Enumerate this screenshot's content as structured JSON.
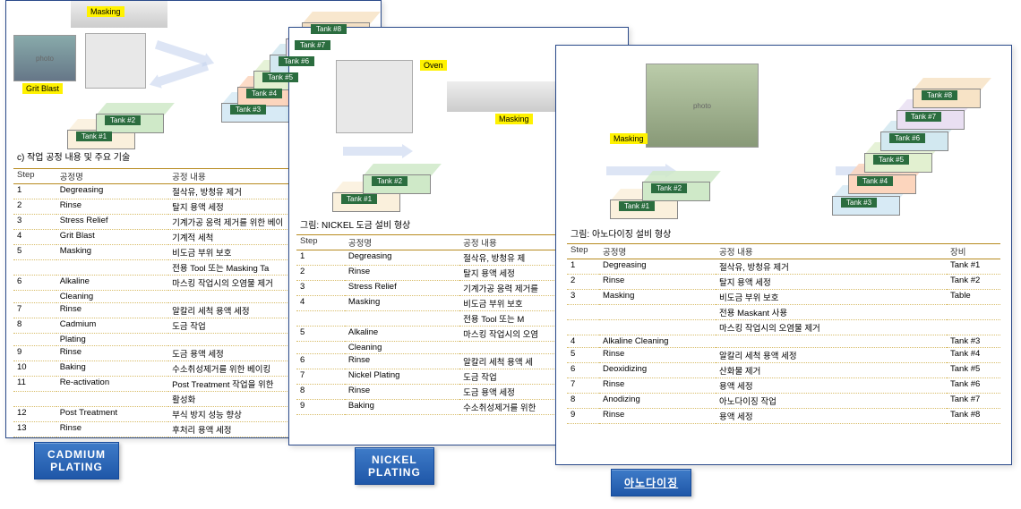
{
  "colors": {
    "tank_fills": [
      "#faf0dc",
      "#cfe9c8",
      "#d7eaf5",
      "#fcd5bd",
      "#e2f0d0",
      "#d2e8f0",
      "#e9dff2",
      "#f7e3c6"
    ],
    "tank_edge": "#9aa",
    "label_bg": "#2b6d3f",
    "hilite": "#fff200",
    "arrow": "#c7d5f0",
    "rule": "#b78a1e",
    "btn_from": "#3e7bc8",
    "btn_to": "#1f57a8",
    "panel_border": "#2a4a8a"
  },
  "tank_labels": [
    "Tank #1",
    "Tank #2",
    "Tank #3",
    "Tank #4",
    "Tank #5",
    "Tank #6",
    "Tank #7",
    "Tank #8"
  ],
  "equip": {
    "masking": "Masking",
    "oven": "Oven",
    "grit": "Grit Blast"
  },
  "cadmium": {
    "caption": "c) 작업 공정 내용 및 주요 기술",
    "columns": [
      "Step",
      "공정명",
      "공정 내용"
    ],
    "rows": [
      [
        "1",
        "Degreasing",
        "절삭유, 방청유   제거"
      ],
      [
        "2",
        "Rinse",
        "탈지 용액 세정"
      ],
      [
        "3",
        "Stress  Relief",
        "기계가공 응력 제거를 위한 베이"
      ],
      [
        "4",
        "Grit  Blast",
        "기계적 세척"
      ],
      [
        "5",
        "Masking",
        "비도금 부위 보호"
      ],
      [
        "",
        "",
        "전용 Tool  또는 Masking Ta"
      ],
      [
        "6",
        "Alkaline",
        "마스킹 작업시의 오염물 제거"
      ],
      [
        "",
        "Cleaning",
        ""
      ],
      [
        "7",
        "Rinse",
        "알칼리 세척 용액 세정"
      ],
      [
        "8",
        "Cadmium",
        "도금 작업"
      ],
      [
        "",
        "Plating",
        ""
      ],
      [
        "9",
        "Rinse",
        "도금 용액 세정"
      ],
      [
        "10",
        "Baking",
        "수소취성제거를 위한 베이킹"
      ],
      [
        "11",
        "Re-activation",
        "Post  Treatment 작업을 위한"
      ],
      [
        "",
        "",
        "활성화"
      ],
      [
        "12",
        "Post  Treatment",
        "부식 방지 성능 향상"
      ],
      [
        "13",
        "Rinse",
        "후처리 용액 세정"
      ]
    ],
    "btn": "CADMIUM\nPLATING"
  },
  "nickel": {
    "caption": "그림: NICKEL 도금 설비 형상",
    "columns": [
      "Step",
      "공정명",
      "공정 내용"
    ],
    "rows": [
      [
        "1",
        "Degreasing",
        "절삭유, 방청유   제"
      ],
      [
        "2",
        "Rinse",
        "탈지 용액 세정"
      ],
      [
        "3",
        "Stress  Relief",
        "기계가공 응력 제거를"
      ],
      [
        "4",
        "Masking",
        "비도금 부위 보호"
      ],
      [
        "",
        "",
        "전용 Tool  또는 M"
      ],
      [
        "5",
        "Alkaline",
        "마스킹 작업시의 오염"
      ],
      [
        "",
        "Cleaning",
        ""
      ],
      [
        "6",
        "Rinse",
        "알칼리 세척 용액 세"
      ],
      [
        "7",
        "Nickel  Plating",
        "도금 작업"
      ],
      [
        "8",
        "Rinse",
        "도금 용액 세정"
      ],
      [
        "9",
        "Baking",
        "수소취성제거를 위한"
      ]
    ],
    "btn": "NICKEL\nPLATING"
  },
  "anodize": {
    "caption": "그림: 아노다이징 설비 형상",
    "columns": [
      "Step",
      "공정명",
      "공정 내용",
      "장비"
    ],
    "rows": [
      [
        "1",
        "Degreasing",
        "절삭유, 방청유   제거",
        "Tank #1"
      ],
      [
        "2",
        "Rinse",
        "탈지 용액 세정",
        "Tank #2"
      ],
      [
        "3",
        "Masking",
        "비도금 부위 보호",
        "Table"
      ],
      [
        "",
        "",
        "전용 Maskant  사용",
        ""
      ],
      [
        "",
        "",
        "마스킹 작업시의 오염물 제거",
        ""
      ],
      [
        "4",
        "Alkaline  Cleaning",
        "",
        "Tank #3"
      ],
      [
        "5",
        "Rinse",
        "알칼리 세척 용액 세정",
        "Tank #4"
      ],
      [
        "6",
        "Deoxidizing",
        "산화물 제거",
        "Tank #5"
      ],
      [
        "7",
        "Rinse",
        "용액 세정",
        "Tank #6"
      ],
      [
        "8",
        "Anodizing",
        "아노다이징 작업",
        "Tank #7"
      ],
      [
        "9",
        "Rinse",
        "용액 세정",
        "Tank #8"
      ]
    ],
    "btn": "아노다이징"
  }
}
